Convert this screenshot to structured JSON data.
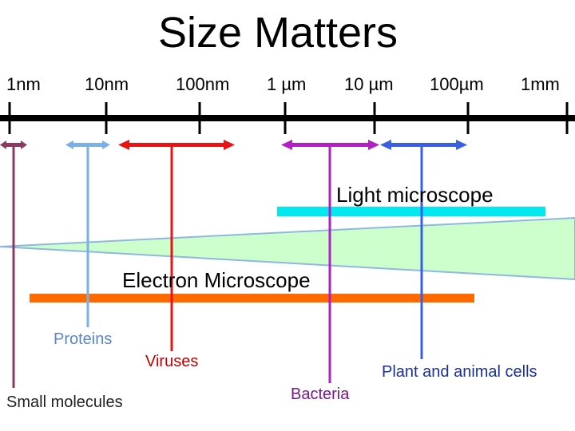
{
  "title": "Size Matters",
  "scale_labels": [
    "1nm",
    "10nm",
    "100nm",
    "1 µm",
    "10 µm",
    "100µm",
    "1mm"
  ],
  "light_microscope_label": "Light microscope",
  "electron_microscope_label": "Electron Microscope",
  "categories": {
    "small_molecules": "Small molecules",
    "proteins": "Proteins",
    "viruses": "Viruses",
    "bacteria": "Bacteria",
    "cells": "Plant and animal cells"
  },
  "colors": {
    "small_molecules": "#8b3a62",
    "proteins": "#7ab0e6",
    "viruses": "#e81313",
    "bacteria": "#b21fc4",
    "cells": "#3a5fe0",
    "light_microscope": "#00e8f0",
    "electron_microscope": "#ff6a00",
    "wedge": "#ccffcc"
  }
}
